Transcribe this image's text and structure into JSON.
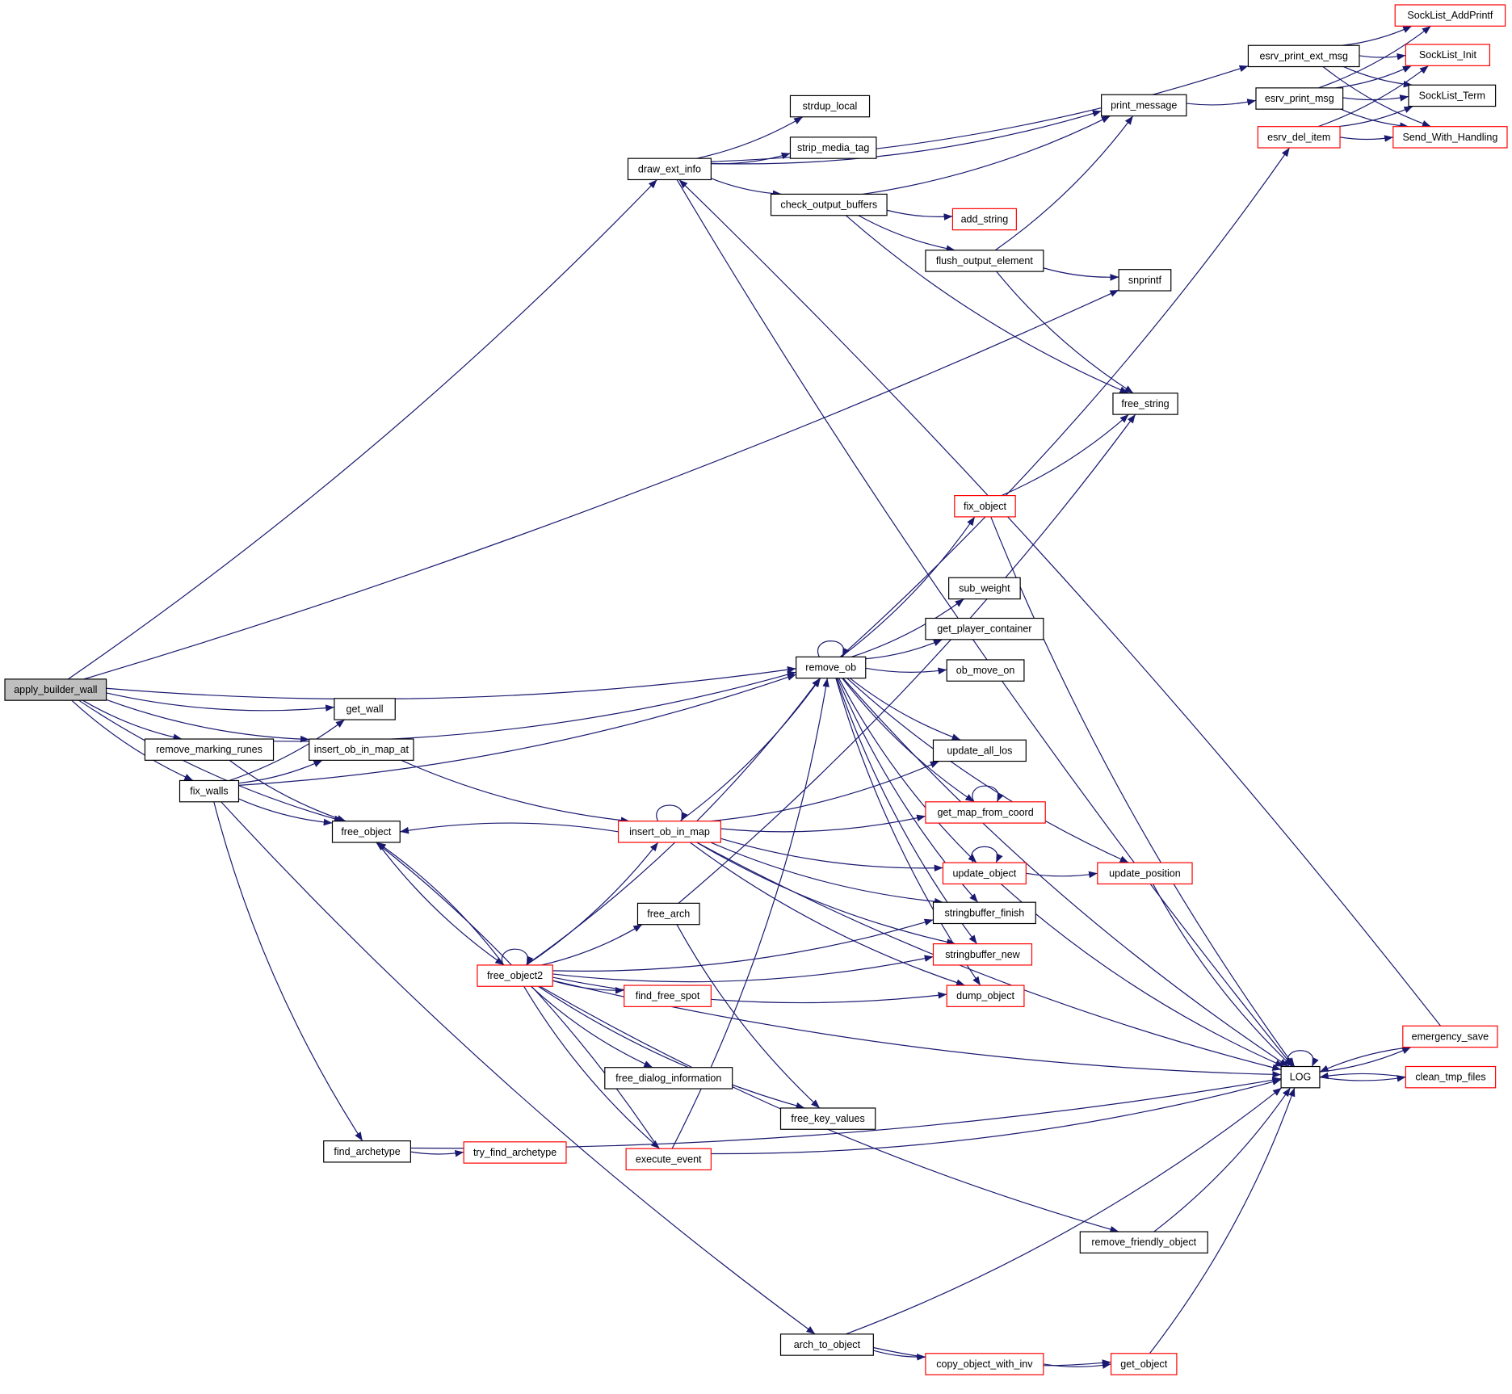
{
  "colors": {
    "edge": "#191970",
    "normal_border": "#000000",
    "highlight_border": "#ff0000",
    "root_fill": "#bfbfbf"
  },
  "root": "apply_builder_wall",
  "nodes": [
    {
      "id": "apply_builder_wall",
      "label": "apply_builder_wall",
      "red": false
    },
    {
      "id": "draw_ext_info",
      "label": "draw_ext_info",
      "red": false
    },
    {
      "id": "strdup_local",
      "label": "strdup_local",
      "red": false
    },
    {
      "id": "strip_media_tag",
      "label": "strip_media_tag",
      "red": false
    },
    {
      "id": "check_output_buffers",
      "label": "check_output_buffers",
      "red": false
    },
    {
      "id": "add_string",
      "label": "add_string",
      "red": true
    },
    {
      "id": "flush_output_element",
      "label": "flush_output_element",
      "red": false
    },
    {
      "id": "print_message",
      "label": "print_message",
      "red": false
    },
    {
      "id": "esrv_print_ext_msg",
      "label": "esrv_print_ext_msg",
      "red": false
    },
    {
      "id": "esrv_print_msg",
      "label": "esrv_print_msg",
      "red": false
    },
    {
      "id": "esrv_del_item",
      "label": "esrv_del_item",
      "red": true
    },
    {
      "id": "SockList_AddPrintf",
      "label": "SockList_AddPrintf",
      "red": true
    },
    {
      "id": "SockList_Init",
      "label": "SockList_Init",
      "red": true
    },
    {
      "id": "SockList_Term",
      "label": "SockList_Term",
      "red": false
    },
    {
      "id": "Send_With_Handling",
      "label": "Send_With_Handling",
      "red": true
    },
    {
      "id": "snprintf",
      "label": "snprintf",
      "red": false
    },
    {
      "id": "free_string",
      "label": "free_string",
      "red": false
    },
    {
      "id": "fix_object",
      "label": "fix_object",
      "red": true
    },
    {
      "id": "sub_weight",
      "label": "sub_weight",
      "red": false
    },
    {
      "id": "get_player_container",
      "label": "get_player_container",
      "red": false
    },
    {
      "id": "ob_move_on",
      "label": "ob_move_on",
      "red": false
    },
    {
      "id": "remove_ob",
      "label": "remove_ob",
      "red": false
    },
    {
      "id": "get_wall",
      "label": "get_wall",
      "red": false
    },
    {
      "id": "remove_marking_runes",
      "label": "remove_marking_runes",
      "red": false
    },
    {
      "id": "insert_ob_in_map_at",
      "label": "insert_ob_in_map_at",
      "red": false
    },
    {
      "id": "fix_walls",
      "label": "fix_walls",
      "red": false
    },
    {
      "id": "free_object",
      "label": "free_object",
      "red": false
    },
    {
      "id": "update_all_los",
      "label": "update_all_los",
      "red": false
    },
    {
      "id": "get_map_from_coord",
      "label": "get_map_from_coord",
      "red": true
    },
    {
      "id": "insert_ob_in_map",
      "label": "insert_ob_in_map",
      "red": true
    },
    {
      "id": "update_object",
      "label": "update_object",
      "red": true
    },
    {
      "id": "update_position",
      "label": "update_position",
      "red": true
    },
    {
      "id": "stringbuffer_finish",
      "label": "stringbuffer_finish",
      "red": false
    },
    {
      "id": "free_arch",
      "label": "free_arch",
      "red": false
    },
    {
      "id": "free_object2",
      "label": "free_object2",
      "red": true
    },
    {
      "id": "stringbuffer_new",
      "label": "stringbuffer_new",
      "red": true
    },
    {
      "id": "find_free_spot",
      "label": "find_free_spot",
      "red": true
    },
    {
      "id": "dump_object",
      "label": "dump_object",
      "red": true
    },
    {
      "id": "free_dialog_information",
      "label": "free_dialog_information",
      "red": false
    },
    {
      "id": "free_key_values",
      "label": "free_key_values",
      "red": false
    },
    {
      "id": "LOG",
      "label": "LOG",
      "red": false
    },
    {
      "id": "emergency_save",
      "label": "emergency_save",
      "red": true
    },
    {
      "id": "clean_tmp_files",
      "label": "clean_tmp_files",
      "red": true
    },
    {
      "id": "find_archetype",
      "label": "find_archetype",
      "red": false
    },
    {
      "id": "try_find_archetype",
      "label": "try_find_archetype",
      "red": true
    },
    {
      "id": "execute_event",
      "label": "execute_event",
      "red": true
    },
    {
      "id": "remove_friendly_object",
      "label": "remove_friendly_object",
      "red": false
    },
    {
      "id": "arch_to_object",
      "label": "arch_to_object",
      "red": false
    },
    {
      "id": "copy_object_with_inv",
      "label": "copy_object_with_inv",
      "red": true
    },
    {
      "id": "get_object",
      "label": "get_object",
      "red": true
    }
  ],
  "edges": [
    [
      "apply_builder_wall",
      "draw_ext_info"
    ],
    [
      "apply_builder_wall",
      "snprintf"
    ],
    [
      "apply_builder_wall",
      "remove_ob"
    ],
    [
      "apply_builder_wall",
      "get_wall"
    ],
    [
      "apply_builder_wall",
      "remove_marking_runes"
    ],
    [
      "apply_builder_wall",
      "insert_ob_in_map_at"
    ],
    [
      "apply_builder_wall",
      "fix_walls"
    ],
    [
      "apply_builder_wall",
      "free_object"
    ],
    [
      "draw_ext_info",
      "esrv_print_ext_msg"
    ],
    [
      "draw_ext_info",
      "print_message"
    ],
    [
      "draw_ext_info",
      "strdup_local"
    ],
    [
      "draw_ext_info",
      "strip_media_tag"
    ],
    [
      "draw_ext_info",
      "check_output_buffers"
    ],
    [
      "draw_ext_info",
      "LOG"
    ],
    [
      "check_output_buffers",
      "print_message"
    ],
    [
      "check_output_buffers",
      "add_string"
    ],
    [
      "check_output_buffers",
      "flush_output_element"
    ],
    [
      "check_output_buffers",
      "free_string"
    ],
    [
      "flush_output_element",
      "print_message"
    ],
    [
      "flush_output_element",
      "snprintf"
    ],
    [
      "flush_output_element",
      "free_string"
    ],
    [
      "print_message",
      "esrv_print_msg"
    ],
    [
      "esrv_print_ext_msg",
      "SockList_AddPrintf"
    ],
    [
      "esrv_print_ext_msg",
      "SockList_Init"
    ],
    [
      "esrv_print_ext_msg",
      "SockList_Term"
    ],
    [
      "esrv_print_ext_msg",
      "Send_With_Handling"
    ],
    [
      "esrv_print_msg",
      "SockList_AddPrintf"
    ],
    [
      "esrv_print_msg",
      "SockList_Init"
    ],
    [
      "esrv_print_msg",
      "SockList_Term"
    ],
    [
      "esrv_print_msg",
      "Send_With_Handling"
    ],
    [
      "esrv_del_item",
      "SockList_Init"
    ],
    [
      "esrv_del_item",
      "SockList_Term"
    ],
    [
      "esrv_del_item",
      "Send_With_Handling"
    ],
    [
      "remove_marking_runes",
      "remove_ob"
    ],
    [
      "remove_marking_runes",
      "free_object"
    ],
    [
      "fix_walls",
      "get_wall"
    ],
    [
      "fix_walls",
      "insert_ob_in_map_at"
    ],
    [
      "fix_walls",
      "remove_ob"
    ],
    [
      "fix_walls",
      "free_object"
    ],
    [
      "fix_walls",
      "find_archetype"
    ],
    [
      "fix_walls",
      "arch_to_object"
    ],
    [
      "insert_ob_in_map_at",
      "insert_ob_in_map"
    ],
    [
      "remove_ob",
      "remove_ob"
    ],
    [
      "remove_ob",
      "esrv_del_item"
    ],
    [
      "remove_ob",
      "fix_object"
    ],
    [
      "remove_ob",
      "sub_weight"
    ],
    [
      "remove_ob",
      "get_player_container"
    ],
    [
      "remove_ob",
      "ob_move_on"
    ],
    [
      "remove_ob",
      "update_all_los"
    ],
    [
      "remove_ob",
      "get_map_from_coord"
    ],
    [
      "remove_ob",
      "update_object"
    ],
    [
      "remove_ob",
      "stringbuffer_finish"
    ],
    [
      "remove_ob",
      "stringbuffer_new"
    ],
    [
      "remove_ob",
      "dump_object"
    ],
    [
      "remove_ob",
      "update_position"
    ],
    [
      "remove_ob",
      "LOG"
    ],
    [
      "fix_object",
      "free_string"
    ],
    [
      "fix_object",
      "LOG"
    ],
    [
      "insert_ob_in_map",
      "insert_ob_in_map"
    ],
    [
      "insert_ob_in_map",
      "remove_ob"
    ],
    [
      "insert_ob_in_map",
      "free_object"
    ],
    [
      "insert_ob_in_map",
      "update_all_los"
    ],
    [
      "insert_ob_in_map",
      "get_map_from_coord"
    ],
    [
      "insert_ob_in_map",
      "update_object"
    ],
    [
      "insert_ob_in_map",
      "stringbuffer_finish"
    ],
    [
      "insert_ob_in_map",
      "stringbuffer_new"
    ],
    [
      "insert_ob_in_map",
      "dump_object"
    ],
    [
      "insert_ob_in_map",
      "LOG"
    ],
    [
      "free_object",
      "free_object2"
    ],
    [
      "free_object2",
      "free_object2"
    ],
    [
      "free_object2",
      "free_object"
    ],
    [
      "free_object2",
      "insert_ob_in_map"
    ],
    [
      "free_object2",
      "remove_ob"
    ],
    [
      "free_object2",
      "free_arch"
    ],
    [
      "free_object2",
      "stringbuffer_finish"
    ],
    [
      "free_object2",
      "stringbuffer_new"
    ],
    [
      "free_object2",
      "find_free_spot"
    ],
    [
      "free_object2",
      "dump_object"
    ],
    [
      "free_object2",
      "free_dialog_information"
    ],
    [
      "free_object2",
      "free_key_values"
    ],
    [
      "free_object2",
      "execute_event"
    ],
    [
      "free_object2",
      "LOG"
    ],
    [
      "free_object2",
      "remove_friendly_object"
    ],
    [
      "free_arch",
      "free_string"
    ],
    [
      "free_arch",
      "free_key_values"
    ],
    [
      "execute_event",
      "free_object"
    ],
    [
      "execute_event",
      "remove_ob"
    ],
    [
      "execute_event",
      "LOG"
    ],
    [
      "update_object",
      "update_object"
    ],
    [
      "update_object",
      "update_position"
    ],
    [
      "update_object",
      "LOG"
    ],
    [
      "get_map_from_coord",
      "get_map_from_coord"
    ],
    [
      "update_position",
      "LOG"
    ],
    [
      "LOG",
      "LOG"
    ],
    [
      "LOG",
      "emergency_save"
    ],
    [
      "LOG",
      "clean_tmp_files"
    ],
    [
      "emergency_save",
      "LOG"
    ],
    [
      "emergency_save",
      "draw_ext_info"
    ],
    [
      "clean_tmp_files",
      "LOG"
    ],
    [
      "find_archetype",
      "try_find_archetype"
    ],
    [
      "find_archetype",
      "LOG"
    ],
    [
      "arch_to_object",
      "LOG"
    ],
    [
      "arch_to_object",
      "copy_object_with_inv"
    ],
    [
      "arch_to_object",
      "get_object"
    ],
    [
      "copy_object_with_inv",
      "get_object"
    ],
    [
      "get_object",
      "LOG"
    ],
    [
      "remove_friendly_object",
      "LOG"
    ]
  ]
}
